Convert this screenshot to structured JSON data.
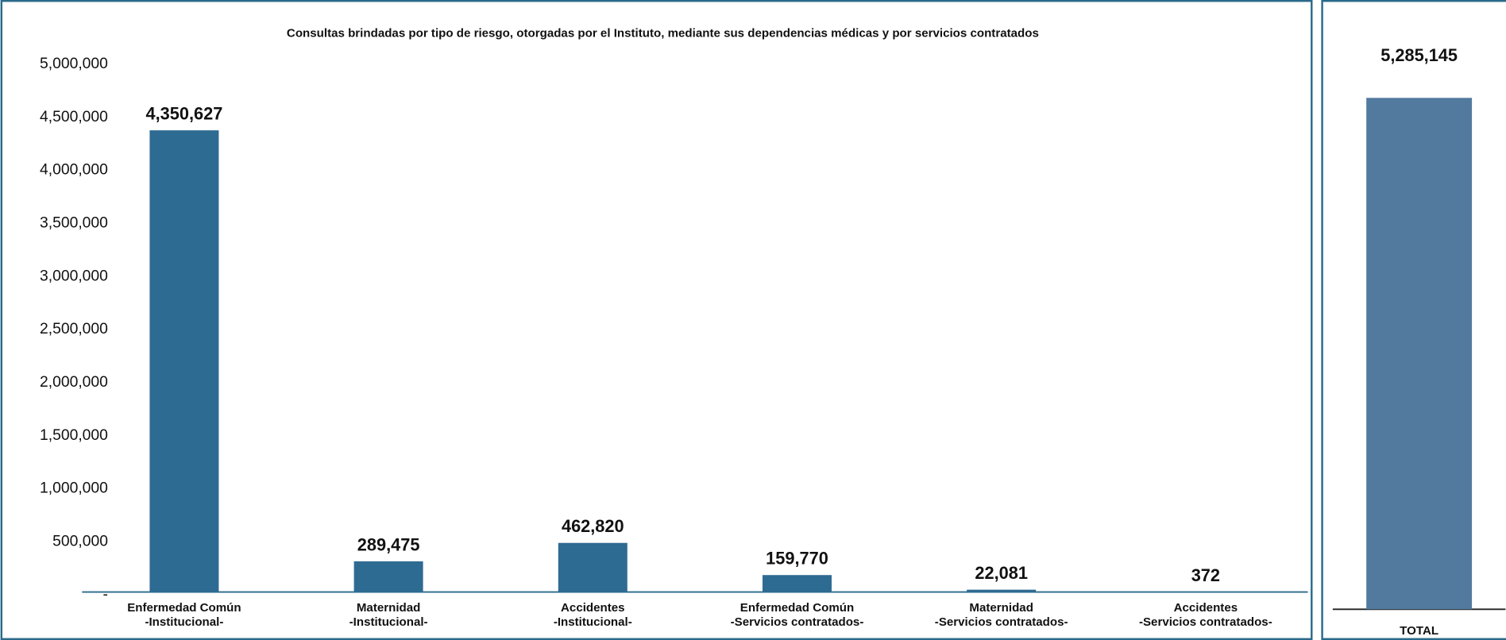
{
  "chart_data": [
    {
      "type": "bar",
      "title": "Consultas brindadas por tipo de riesgo, otorgadas por el Instituto, mediante sus dependencias médicas y por servicios contratados",
      "categories": [
        [
          "Enfermedad Común",
          "-Institucional-"
        ],
        [
          "Maternidad",
          "-Institucional-"
        ],
        [
          "Accidentes",
          "-Institucional-"
        ],
        [
          "Enfermedad Común",
          "-Servicios contratados-"
        ],
        [
          "Maternidad",
          "-Servicios contratados-"
        ],
        [
          "Accidentes",
          "-Servicios contratados-"
        ]
      ],
      "values": [
        4350627,
        289475,
        462820,
        159770,
        22081,
        372
      ],
      "value_labels": [
        "4,350,627",
        "289,475",
        "462,820",
        "159,770",
        "22,081",
        "372"
      ],
      "color": "#2e6b92",
      "ylim": [
        0,
        5000000
      ],
      "yticks": [
        {
          "value": 0,
          "label": "-"
        },
        {
          "value": 500000,
          "label": "500,000"
        },
        {
          "value": 1000000,
          "label": "1,000,000"
        },
        {
          "value": 1500000,
          "label": "1,500,000"
        },
        {
          "value": 2000000,
          "label": "2,000,000"
        },
        {
          "value": 2500000,
          "label": "2,500,000"
        },
        {
          "value": 3000000,
          "label": "3,000,000"
        },
        {
          "value": 3500000,
          "label": "3,500,000"
        },
        {
          "value": 4000000,
          "label": "4,000,000"
        },
        {
          "value": 4500000,
          "label": "4,500,000"
        },
        {
          "value": 5000000,
          "label": "5,000,000"
        }
      ]
    },
    {
      "type": "bar",
      "categories": [
        "TOTAL"
      ],
      "values": [
        5285145
      ],
      "value_labels": [
        "5,285,145"
      ],
      "color": "#527a9e"
    }
  ]
}
